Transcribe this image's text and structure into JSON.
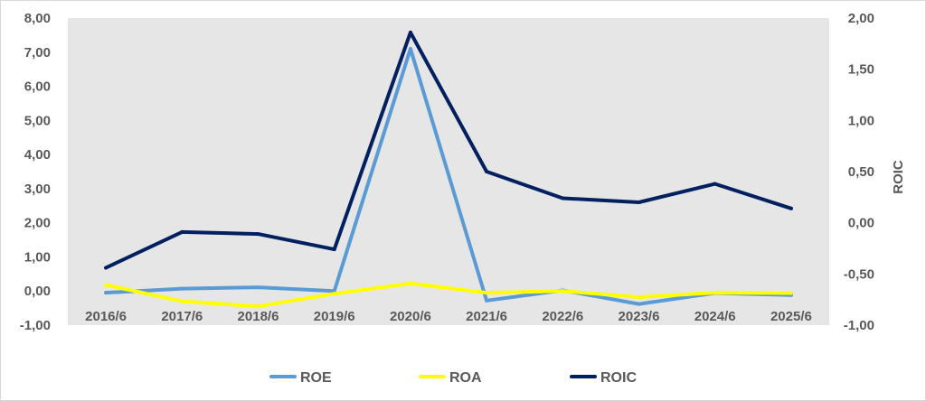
{
  "chart_data": {
    "type": "line",
    "title": "",
    "categories": [
      "2016/6",
      "2017/6",
      "2018/6",
      "2019/6",
      "2020/6",
      "2021/6",
      "2022/6",
      "2023/6",
      "2024/6",
      "2025/6"
    ],
    "left_axis": {
      "ylim": [
        -1,
        8
      ],
      "ticks": [
        "-1,00",
        "0,00",
        "1,00",
        "2,00",
        "3,00",
        "4,00",
        "5,00",
        "6,00",
        "7,00",
        "8,00"
      ],
      "label": ""
    },
    "right_axis": {
      "ylim": [
        -1,
        2
      ],
      "ticks": [
        "-1,00",
        "-0,50",
        "0,00",
        "0,50",
        "1,00",
        "1,50",
        "2,00"
      ],
      "label": "ROIC"
    },
    "series": [
      {
        "name": "ROE",
        "axis": "left",
        "color": "#5b9bd5",
        "values": [
          -0.05,
          0.07,
          0.11,
          0.0,
          7.1,
          -0.28,
          0.02,
          -0.38,
          -0.06,
          -0.12
        ]
      },
      {
        "name": "ROA",
        "axis": "left",
        "color": "#ffff00",
        "values": [
          0.18,
          -0.3,
          -0.45,
          -0.08,
          0.22,
          -0.05,
          0.0,
          -0.18,
          -0.05,
          -0.06
        ]
      },
      {
        "name": "ROIC",
        "axis": "right",
        "color": "#002060",
        "values": [
          -0.44,
          -0.09,
          -0.11,
          -0.26,
          1.86,
          0.5,
          0.24,
          0.2,
          0.38,
          0.14
        ]
      }
    ],
    "grid": false,
    "legend_position": "bottom"
  },
  "colors": {
    "plot_background": "#e7e6e6",
    "axis_text": "#595959"
  }
}
